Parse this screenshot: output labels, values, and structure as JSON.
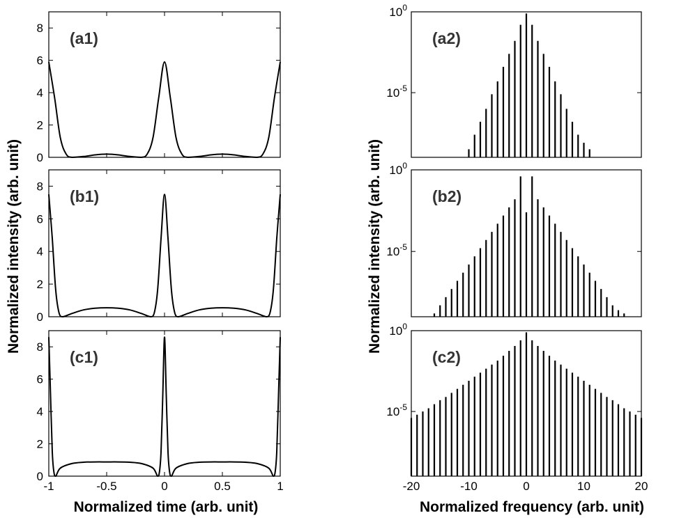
{
  "figure": {
    "ylabel_left": "Normalized intensity (arb. unit)",
    "xlabel_left": "Normalized time (arb. unit)",
    "ylabel_right": "Normalized intensity (arb. unit)",
    "xlabel_right": "Normalized frequency (arb. unit)"
  },
  "chart_data": [
    {
      "type": "line",
      "panel": "(a1)",
      "xlim": [
        -1,
        1
      ],
      "ylim": [
        0,
        9
      ],
      "xticks": [
        -1,
        -0.5,
        0,
        0.5,
        1
      ],
      "yticks": [
        0,
        2,
        4,
        6,
        8
      ],
      "grid": false,
      "series": [
        {
          "x": [
            -1,
            -0.95,
            -0.9,
            -0.85,
            -0.8,
            -0.7,
            -0.6,
            -0.5,
            -0.4,
            -0.3,
            -0.2,
            -0.15,
            -0.1,
            -0.05,
            0,
            0.05,
            0.1,
            0.15,
            0.2,
            0.3,
            0.4,
            0.5,
            0.6,
            0.7,
            0.8,
            0.85,
            0.9,
            0.95,
            1
          ],
          "y": [
            5.9,
            3.7,
            1.2,
            0.2,
            0.0,
            0.05,
            0.15,
            0.2,
            0.15,
            0.05,
            0.0,
            0.2,
            1.2,
            3.7,
            5.9,
            3.7,
            1.2,
            0.2,
            0.0,
            0.05,
            0.15,
            0.2,
            0.15,
            0.05,
            0.0,
            0.2,
            1.2,
            3.7,
            5.9
          ]
        }
      ]
    },
    {
      "type": "bar",
      "panel": "(a2)",
      "scale": "log",
      "xlim": [
        -20,
        20
      ],
      "ylim": [
        1e-09,
        1
      ],
      "yticks": [
        "10^0",
        "10^-5"
      ],
      "x": [
        -10,
        -9,
        -8,
        -7,
        -6,
        -5,
        -4,
        -3,
        -2,
        -1,
        0,
        1,
        2,
        3,
        4,
        5,
        6,
        7,
        8,
        9,
        10,
        11
      ],
      "log10_values": [
        -8.5,
        -7.6,
        -6.8,
        -6.0,
        -5.1,
        -4.3,
        -3.4,
        -2.6,
        -1.8,
        -0.8,
        -0.1,
        -0.8,
        -1.8,
        -2.6,
        -3.4,
        -4.3,
        -5.1,
        -6.0,
        -6.8,
        -7.6,
        -8.1,
        -8.5
      ]
    },
    {
      "type": "line",
      "panel": "(b1)",
      "xlim": [
        -1,
        1
      ],
      "ylim": [
        0,
        9
      ],
      "xticks": [
        -1,
        -0.5,
        0,
        0.5,
        1
      ],
      "yticks": [
        0,
        2,
        4,
        6,
        8
      ],
      "grid": false,
      "series": [
        {
          "x": [
            -1,
            -0.97,
            -0.94,
            -0.91,
            -0.88,
            -0.8,
            -0.7,
            -0.6,
            -0.5,
            -0.4,
            -0.3,
            -0.2,
            -0.12,
            -0.09,
            -0.06,
            -0.03,
            0,
            0.03,
            0.06,
            0.09,
            0.12,
            0.2,
            0.3,
            0.4,
            0.5,
            0.6,
            0.7,
            0.8,
            0.88,
            0.91,
            0.94,
            0.97,
            1
          ],
          "y": [
            7.5,
            4.8,
            1.6,
            0.2,
            0.0,
            0.2,
            0.42,
            0.52,
            0.55,
            0.52,
            0.42,
            0.2,
            0.0,
            0.2,
            1.6,
            4.8,
            7.5,
            4.8,
            1.6,
            0.2,
            0.0,
            0.2,
            0.42,
            0.52,
            0.55,
            0.52,
            0.42,
            0.2,
            0.0,
            0.2,
            1.6,
            4.8,
            7.5
          ]
        }
      ]
    },
    {
      "type": "bar",
      "panel": "(b2)",
      "scale": "log",
      "xlim": [
        -20,
        20
      ],
      "ylim": [
        1e-09,
        1
      ],
      "yticks": [
        "10^0",
        "10^-5"
      ],
      "x": [
        -16,
        -15,
        -14,
        -13,
        -12,
        -11,
        -10,
        -9,
        -8,
        -7,
        -6,
        -5,
        -4,
        -3,
        -2,
        -1,
        0,
        1,
        2,
        3,
        4,
        5,
        6,
        7,
        8,
        9,
        10,
        11,
        12,
        13,
        14,
        15,
        16,
        17
      ],
      "log10_values": [
        -8.8,
        -8.3,
        -7.8,
        -7.3,
        -6.8,
        -6.3,
        -5.8,
        -5.3,
        -4.8,
        -4.3,
        -3.8,
        -3.3,
        -2.8,
        -2.3,
        -1.8,
        -0.4,
        -2.6,
        -0.4,
        -1.8,
        -2.3,
        -2.8,
        -3.3,
        -3.8,
        -4.3,
        -4.8,
        -5.3,
        -5.8,
        -6.3,
        -6.8,
        -7.3,
        -7.8,
        -8.3,
        -8.6,
        -8.8
      ]
    },
    {
      "type": "line",
      "panel": "(c1)",
      "xlim": [
        -1,
        1
      ],
      "ylim": [
        0,
        9
      ],
      "xticks": [
        -1,
        -0.5,
        0,
        0.5,
        1
      ],
      "yticks": [
        0,
        2,
        4,
        6,
        8
      ],
      "grid": false,
      "series": [
        {
          "x": [
            -1,
            -0.985,
            -0.97,
            -0.955,
            -0.94,
            -0.9,
            -0.8,
            -0.7,
            -0.6,
            -0.5,
            -0.4,
            -0.3,
            -0.2,
            -0.1,
            -0.06,
            -0.045,
            -0.03,
            -0.015,
            0,
            0.015,
            0.03,
            0.045,
            0.06,
            0.1,
            0.2,
            0.3,
            0.4,
            0.5,
            0.6,
            0.7,
            0.8,
            0.9,
            0.94,
            0.955,
            0.97,
            0.985,
            1
          ],
          "y": [
            8.6,
            5.0,
            1.5,
            0.2,
            0.0,
            0.5,
            0.78,
            0.86,
            0.88,
            0.88,
            0.88,
            0.86,
            0.78,
            0.5,
            0.0,
            0.2,
            1.5,
            5.0,
            8.6,
            5.0,
            1.5,
            0.2,
            0.0,
            0.5,
            0.78,
            0.86,
            0.88,
            0.88,
            0.88,
            0.86,
            0.78,
            0.5,
            0.0,
            0.2,
            1.5,
            5.0,
            8.6
          ]
        }
      ]
    },
    {
      "type": "bar",
      "panel": "(c2)",
      "scale": "log",
      "xlim": [
        -20,
        20
      ],
      "ylim": [
        1e-09,
        1
      ],
      "yticks": [
        "10^0",
        "10^-5"
      ],
      "xticks": [
        -20,
        -10,
        0,
        10,
        20
      ],
      "x": [
        -20,
        -19,
        -18,
        -17,
        -16,
        -15,
        -14,
        -13,
        -12,
        -11,
        -10,
        -9,
        -8,
        -7,
        -6,
        -5,
        -4,
        -3,
        -2,
        -1,
        0,
        1,
        2,
        3,
        4,
        5,
        6,
        7,
        8,
        9,
        10,
        11,
        12,
        13,
        14,
        15,
        16,
        17,
        18,
        19,
        20
      ],
      "log10_values": [
        -5.4,
        -5.2,
        -5.0,
        -4.8,
        -4.55,
        -4.3,
        -4.1,
        -3.85,
        -3.6,
        -3.35,
        -3.1,
        -2.85,
        -2.6,
        -2.35,
        -2.1,
        -1.85,
        -1.55,
        -1.25,
        -0.95,
        -0.6,
        -0.1,
        -0.6,
        -0.95,
        -1.25,
        -1.55,
        -1.85,
        -2.1,
        -2.35,
        -2.6,
        -2.85,
        -3.1,
        -3.35,
        -3.6,
        -3.85,
        -4.1,
        -4.3,
        -4.55,
        -4.8,
        -5.0,
        -5.2,
        -5.4
      ]
    }
  ]
}
